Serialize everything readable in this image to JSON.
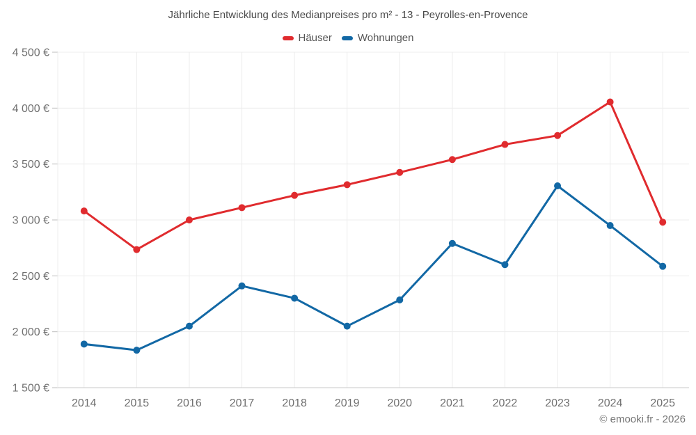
{
  "title": "Jährliche Entwicklung des Medianpreises pro m² - 13 - Peyrolles-en-Provence",
  "footer": "© emooki.fr - 2026",
  "colors": {
    "grid": "#ececec",
    "axis": "#c9c9c9",
    "tick": "#bdbdbd",
    "label": "#707070",
    "title": "#4a4a4a"
  },
  "chart_data": {
    "type": "line",
    "title": "Jährliche Entwicklung des Medianpreises pro m² - 13 - Peyrolles-en-Provence",
    "x": [
      2014,
      2015,
      2016,
      2017,
      2018,
      2019,
      2020,
      2021,
      2022,
      2023,
      2024,
      2025
    ],
    "series": [
      {
        "name": "Häuser",
        "color": "#e02b2e",
        "values": [
          3080,
          2735,
          3000,
          3110,
          3220,
          3315,
          3425,
          3540,
          3675,
          3755,
          4055,
          2980
        ]
      },
      {
        "name": "Wohnungen",
        "color": "#1268a5",
        "values": [
          1890,
          1835,
          2050,
          2410,
          2300,
          2050,
          2285,
          2790,
          2600,
          3305,
          2950,
          2585
        ]
      }
    ],
    "ylim": [
      1500,
      4500
    ],
    "yticks": [
      {
        "value": 4500,
        "label": "4 500 €"
      },
      {
        "value": 4000,
        "label": "4 000 €"
      },
      {
        "value": 3500,
        "label": "3 500 €"
      },
      {
        "value": 3000,
        "label": "3 000 €"
      },
      {
        "value": 2500,
        "label": "2 500 €"
      },
      {
        "value": 2000,
        "label": "2 000 €"
      },
      {
        "value": 1500,
        "label": "1 500 €"
      }
    ],
    "grid": true,
    "legend_position": "top",
    "xlabel": "",
    "ylabel": ""
  }
}
